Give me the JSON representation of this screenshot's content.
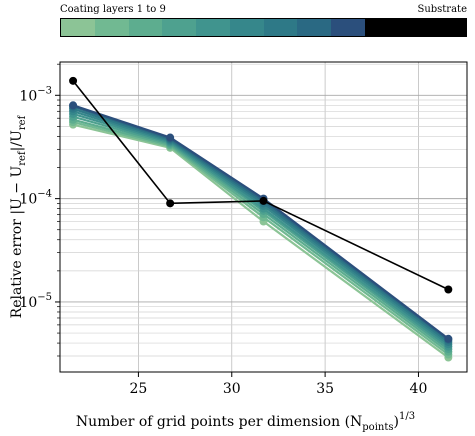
{
  "colorbar": {
    "left_label": "Coating layers 1 to 9",
    "right_label": "Substrate",
    "layer_colors": [
      "#8cc496",
      "#71b992",
      "#5dad8f",
      "#4ea18f",
      "#40948e",
      "#36878b",
      "#2e7987",
      "#2a6983",
      "#2b4f7c"
    ],
    "substrate_color": "#000000"
  },
  "chart_data": {
    "type": "line",
    "xlabel": "Number of grid points per dimension $(N_{\\mathrm{points}})^{1/3}$",
    "xlabel_parts": {
      "main": "Number of grid points per dimension (N",
      "sub": "points",
      "close": ")",
      "sup": "1/3"
    },
    "ylabel": "Relative error |U − U_ref|/U_ref",
    "ylabel_parts": {
      "prefix": "Relative error |U − U",
      "sub1": "ref",
      "mid": "|/U",
      "sub2": "ref"
    },
    "x_ticks": [
      25,
      30,
      35,
      40
    ],
    "y_ticks": [
      {
        "value": 0.001,
        "mantissa": "10",
        "exp": "−3"
      },
      {
        "value": 0.0001,
        "mantissa": "10",
        "exp": "−4"
      },
      {
        "value": 1e-05,
        "mantissa": "10",
        "exp": "−5"
      }
    ],
    "xlim": [
      20.8,
      42.6
    ],
    "ylim": [
      2.1e-06,
      0.0021
    ],
    "y_scale": "log",
    "grid": true,
    "x": [
      21.5,
      26.7,
      31.7,
      41.6
    ],
    "series": [
      {
        "color": "#8cc496",
        "values": [
          0.00052,
          0.00031,
          6e-05,
          2.9e-06
        ]
      },
      {
        "color": "#71b992",
        "values": [
          0.00055,
          0.00032,
          6.6e-05,
          3.1e-06
        ]
      },
      {
        "color": "#5dad8f",
        "values": [
          0.00058,
          0.00033,
          7.1e-05,
          3.3e-06
        ]
      },
      {
        "color": "#4ea18f",
        "values": [
          0.00062,
          0.00034,
          7.6e-05,
          3.5e-06
        ]
      },
      {
        "color": "#40948e",
        "values": [
          0.00066,
          0.00035,
          8e-05,
          3.7e-06
        ]
      },
      {
        "color": "#36878b",
        "values": [
          0.0007,
          0.00036,
          8.5e-05,
          3.9e-06
        ]
      },
      {
        "color": "#2e7987",
        "values": [
          0.00074,
          0.00037,
          9e-05,
          4.1e-06
        ]
      },
      {
        "color": "#2a6983",
        "values": [
          0.00078,
          0.00038,
          9.5e-05,
          4.3e-06
        ]
      },
      {
        "color": "#2b4f7c",
        "values": [
          0.0008,
          0.00039,
          0.0001,
          4.4e-06
        ]
      },
      {
        "color": "#000000",
        "values": [
          0.00138,
          9e-05,
          9.5e-05,
          1.32e-05
        ]
      }
    ]
  }
}
